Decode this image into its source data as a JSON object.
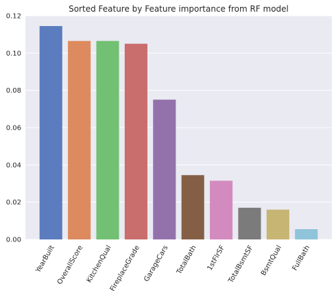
{
  "chart_data": {
    "type": "bar",
    "title": "Sorted Feature by Feature importance from RF model",
    "xlabel": "",
    "ylabel": "",
    "categories": [
      "YearBuilt",
      "OverallScore",
      "KitchenQual",
      "FireplaceGrade",
      "GarageCars",
      "TotalBath",
      "1stFlrSF",
      "TotalBsmtSF",
      "BsmtQual",
      "FullBath"
    ],
    "values": [
      0.1145,
      0.1065,
      0.1065,
      0.105,
      0.075,
      0.0345,
      0.0315,
      0.017,
      0.016,
      0.0055
    ],
    "colors": [
      "#5b7dbf",
      "#dd8a5f",
      "#72c073",
      "#c96d6d",
      "#9372ac",
      "#855f45",
      "#d38bbf",
      "#7b7b7b",
      "#c7b574",
      "#8fc4da"
    ],
    "ylim": [
      0,
      0.12
    ],
    "yticks": [
      "0.00",
      "0.02",
      "0.04",
      "0.06",
      "0.08",
      "0.10",
      "0.12"
    ],
    "grid": true,
    "background": "#eaeaf2"
  }
}
